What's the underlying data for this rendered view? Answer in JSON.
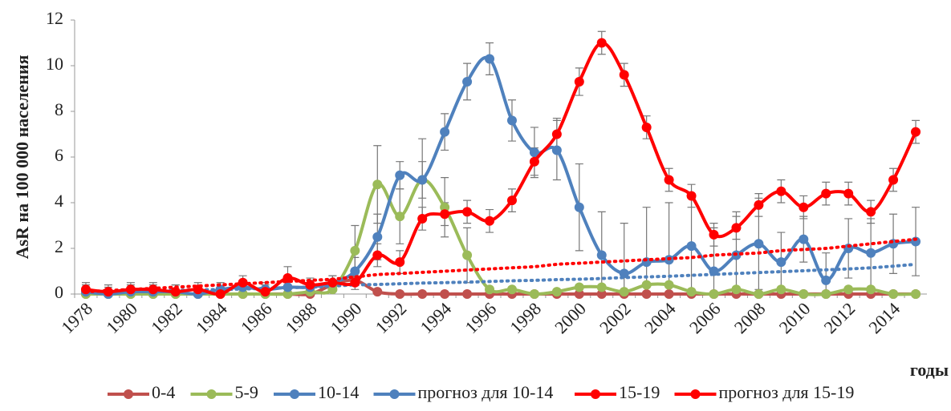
{
  "chart_data": {
    "type": "line",
    "y_label": "AsR на 100 000 населения",
    "x_label": "годы",
    "categories": [
      "1978",
      null,
      "1980",
      null,
      "1982",
      null,
      "1984",
      null,
      "1986",
      null,
      "1988",
      null,
      "1990",
      null,
      "1992",
      null,
      "1994",
      null,
      "1996",
      null,
      "1998",
      null,
      "2000",
      null,
      "2002",
      null,
      "2004",
      null,
      "2006",
      null,
      "2008",
      null,
      "2010",
      null,
      "2012",
      null,
      "2014",
      null
    ],
    "ylim": [
      0,
      12
    ],
    "yticks": [
      0,
      2,
      4,
      6,
      8,
      10,
      12
    ],
    "grid": false,
    "legend": "bottom",
    "series": [
      {
        "name": "0-4",
        "color": "#c0504d",
        "marker": true,
        "dash": "solid",
        "values": [
          0,
          0,
          0,
          0,
          0,
          0,
          0,
          0,
          0,
          0,
          0,
          0.4,
          0.6,
          0.1,
          0,
          0,
          0,
          0,
          0,
          0,
          0,
          0,
          0,
          0,
          0,
          0,
          0,
          0,
          0,
          0,
          0,
          0,
          0,
          0,
          0,
          0,
          0,
          0
        ]
      },
      {
        "name": "5-9",
        "color": "#9bbb59",
        "marker": true,
        "dash": "solid",
        "values": [
          0,
          0,
          0,
          0,
          0,
          0,
          0,
          0,
          0,
          0,
          0.1,
          0.2,
          1.9,
          4.8,
          3.4,
          5.0,
          3.8,
          1.7,
          0.2,
          0.2,
          0,
          0.1,
          0.3,
          0.3,
          0.1,
          0.4,
          0.4,
          0.1,
          0,
          0.2,
          0,
          0.2,
          0,
          0,
          0.2,
          0.2,
          0,
          0
        ],
        "errors": [
          0,
          0,
          0,
          0,
          0,
          0,
          0,
          0,
          0,
          0,
          0,
          0,
          1.1,
          1.7,
          1.2,
          1.8,
          1.3,
          1.2,
          0,
          0,
          0,
          0,
          0,
          0,
          0,
          0,
          0,
          0,
          0,
          0,
          0,
          0,
          0,
          0,
          0,
          0,
          0,
          0
        ]
      },
      {
        "name": "10-14",
        "color": "#4f81bd",
        "marker": true,
        "dash": "solid",
        "values": [
          0.1,
          0,
          0.1,
          0.1,
          0.1,
          0,
          0.2,
          0.3,
          0.2,
          0.3,
          0.3,
          0.5,
          1.0,
          2.5,
          5.2,
          5.0,
          7.1,
          9.3,
          10.3,
          7.6,
          6.2,
          6.3,
          3.8,
          1.7,
          0.9,
          1.4,
          1.5,
          2.1,
          1.0,
          1.7,
          2.2,
          1.4,
          2.4,
          0.6,
          2.0,
          1.8,
          2.2,
          2.3
        ],
        "errors": [
          0.3,
          0.3,
          0.3,
          0.3,
          0.3,
          0.3,
          0.3,
          0.3,
          0.3,
          0.5,
          0.3,
          0.3,
          0.6,
          1.0,
          0.6,
          0.8,
          0.8,
          0.8,
          0.7,
          0.9,
          1.1,
          1.3,
          1.9,
          1.9,
          2.2,
          2.4,
          2.5,
          2.1,
          1.9,
          1.9,
          2.0,
          1.3,
          1.0,
          1.2,
          1.3,
          1.5,
          1.3,
          1.5
        ]
      },
      {
        "name": "прогноз для 10-14",
        "color": "#4f81bd",
        "marker": false,
        "dash": "dotted",
        "values": [
          0.1,
          0.1,
          0.12,
          0.14,
          0.16,
          0.18,
          0.2,
          0.22,
          0.25,
          0.28,
          0.3,
          0.35,
          0.4,
          0.42,
          0.45,
          0.48,
          0.5,
          0.52,
          0.55,
          0.58,
          0.6,
          0.63,
          0.65,
          0.68,
          0.72,
          0.75,
          0.78,
          0.82,
          0.86,
          0.9,
          0.94,
          0.98,
          1.02,
          1.06,
          1.1,
          1.15,
          1.22,
          1.3
        ]
      },
      {
        "name": "15-19",
        "color": "#ff0000",
        "marker": true,
        "dash": "solid",
        "values": [
          0.2,
          0.1,
          0.2,
          0.2,
          0.1,
          0.2,
          0,
          0.5,
          0.1,
          0.7,
          0.4,
          0.5,
          0.5,
          1.7,
          1.4,
          3.3,
          3.5,
          3.6,
          3.2,
          4.1,
          5.8,
          7.0,
          9.3,
          11.0,
          9.6,
          7.3,
          5.0,
          4.3,
          2.6,
          2.9,
          3.9,
          4.5,
          3.8,
          4.4,
          4.4,
          3.6,
          5.0,
          7.1
        ],
        "errors": [
          0.3,
          0.3,
          0.3,
          0.3,
          0.3,
          0.3,
          0.3,
          0.3,
          0.3,
          0.5,
          0.3,
          0.3,
          0.3,
          0.5,
          0.5,
          0.5,
          0.5,
          0.5,
          0.5,
          0.5,
          0.6,
          0.7,
          0.6,
          0.5,
          0.5,
          0.5,
          0.5,
          0.5,
          0.5,
          0.5,
          0.5,
          0.5,
          0.5,
          0.5,
          0.5,
          0.5,
          0.5,
          0.5
        ]
      },
      {
        "name": "прогноз для 15-19",
        "color": "#ff0000",
        "marker": false,
        "dash": "dotted",
        "values": [
          0.1,
          0.15,
          0.2,
          0.25,
          0.3,
          0.35,
          0.4,
          0.45,
          0.5,
          0.55,
          0.6,
          0.65,
          0.75,
          0.85,
          0.9,
          0.95,
          1.0,
          1.05,
          1.1,
          1.15,
          1.2,
          1.3,
          1.35,
          1.4,
          1.45,
          1.5,
          1.55,
          1.6,
          1.7,
          1.75,
          1.8,
          1.9,
          1.95,
          2.0,
          2.1,
          2.2,
          2.3,
          2.4
        ]
      }
    ]
  }
}
